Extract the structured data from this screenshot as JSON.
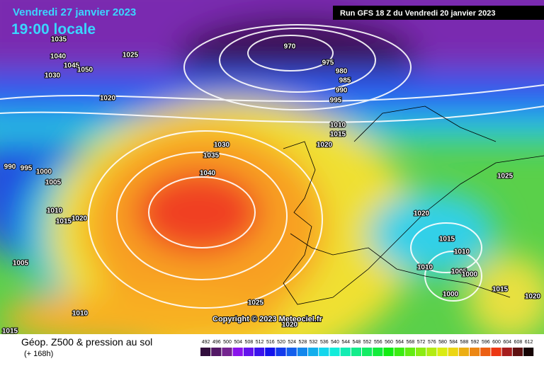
{
  "header": {
    "date": "Vendredi 27 janvier 2023",
    "time": "19:00 locale",
    "run": "Run GFS 18 Z du Vendredi 20 janvier 2023"
  },
  "isobar_labels": [
    "1035",
    "1040",
    "1045",
    "1050",
    "1030",
    "1025",
    "1020",
    "970",
    "975",
    "980",
    "985",
    "990",
    "995",
    "1010",
    "1015",
    "1020",
    "1030",
    "1035",
    "1040",
    "990",
    "995",
    "1000",
    "1005",
    "1010",
    "1015",
    "1020",
    "1005",
    "1025",
    "1020",
    "1010",
    "1015",
    "1025",
    "1020",
    "1015",
    "1010",
    "1010",
    "1005",
    "1000",
    "1000",
    "1015",
    "1020"
  ],
  "copyright": "Copyright © 2023 Meteociel.fr",
  "legend": {
    "title": "Géop. Z500 & pression au sol",
    "subtitle": "(+ 168h)",
    "scale": [
      "492",
      "496",
      "500",
      "504",
      "508",
      "512",
      "516",
      "520",
      "524",
      "528",
      "532",
      "536",
      "540",
      "544",
      "548",
      "552",
      "556",
      "560",
      "564",
      "568",
      "572",
      "576",
      "580",
      "584",
      "588",
      "592",
      "596",
      "600",
      "604",
      "608",
      "612"
    ]
  }
}
